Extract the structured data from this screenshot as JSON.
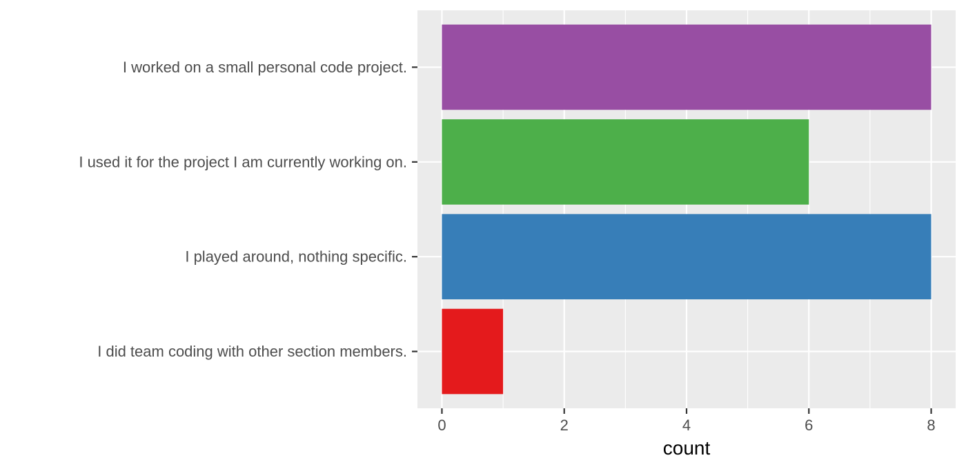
{
  "chart_data": {
    "type": "bar",
    "orientation": "horizontal",
    "categories": [
      "I did team coding with other section members.",
      "I played around, nothing specific.",
      "I used it for the project I am currently working on.",
      "I worked on a small personal code project."
    ],
    "values": [
      1,
      8,
      6,
      8
    ],
    "colors": [
      "#E41A1C",
      "#377EB8",
      "#4DAF4A",
      "#984EA3"
    ],
    "xlabel": "count",
    "ylabel": "",
    "title": "",
    "xlim": [
      -0.4,
      8.4
    ],
    "xticks": [
      0,
      2,
      4,
      6,
      8
    ],
    "xtick_labels": [
      "0",
      "2",
      "4",
      "6",
      "8"
    ],
    "grid": true,
    "panel_background": "#EBEBEB",
    "grid_color": "#FFFFFF"
  }
}
